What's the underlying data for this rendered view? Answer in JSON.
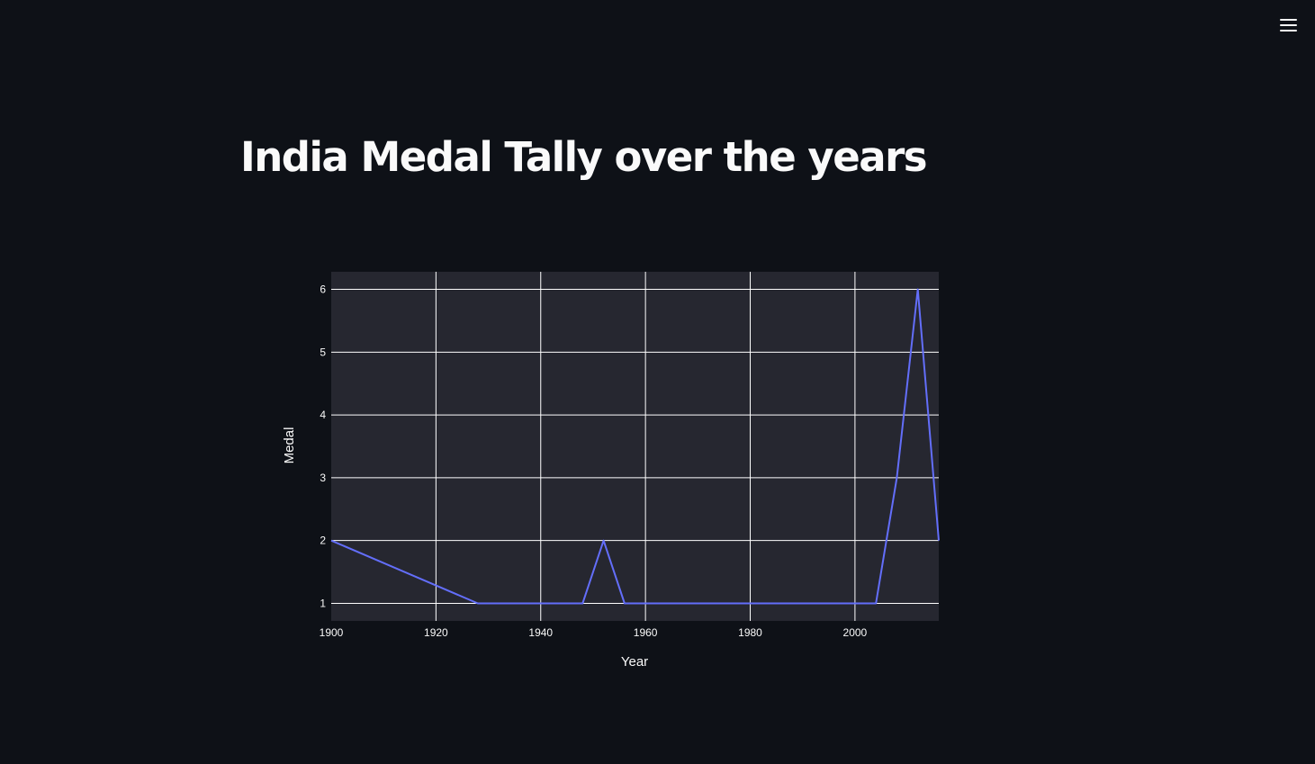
{
  "header": {
    "menu_icon": "hamburger-menu-icon"
  },
  "page": {
    "title": "India Medal Tally over the years"
  },
  "colors": {
    "background": "#0e1117",
    "plot_background": "#262730",
    "grid": "#ffffff",
    "line": "#636efa",
    "text": "#fafafa"
  },
  "chart_data": {
    "type": "line",
    "title": "",
    "xlabel": "Year",
    "ylabel": "Medal",
    "xlim": [
      1900,
      2016
    ],
    "ylim": [
      0.72,
      6.28
    ],
    "x_ticks": [
      1900,
      1920,
      1940,
      1960,
      1980,
      2000
    ],
    "y_ticks": [
      1,
      2,
      3,
      4,
      5,
      6
    ],
    "grid": true,
    "legend": "none",
    "series": [
      {
        "x": [
          1900,
          1928,
          1932,
          1936,
          1948,
          1952,
          1956,
          1960,
          1964,
          1968,
          1972,
          1980,
          1996,
          2000,
          2004,
          2008,
          2012,
          2016
        ],
        "values": [
          2,
          1,
          1,
          1,
          1,
          2,
          1,
          1,
          1,
          1,
          1,
          1,
          1,
          1,
          1,
          3,
          6,
          2
        ]
      }
    ]
  }
}
